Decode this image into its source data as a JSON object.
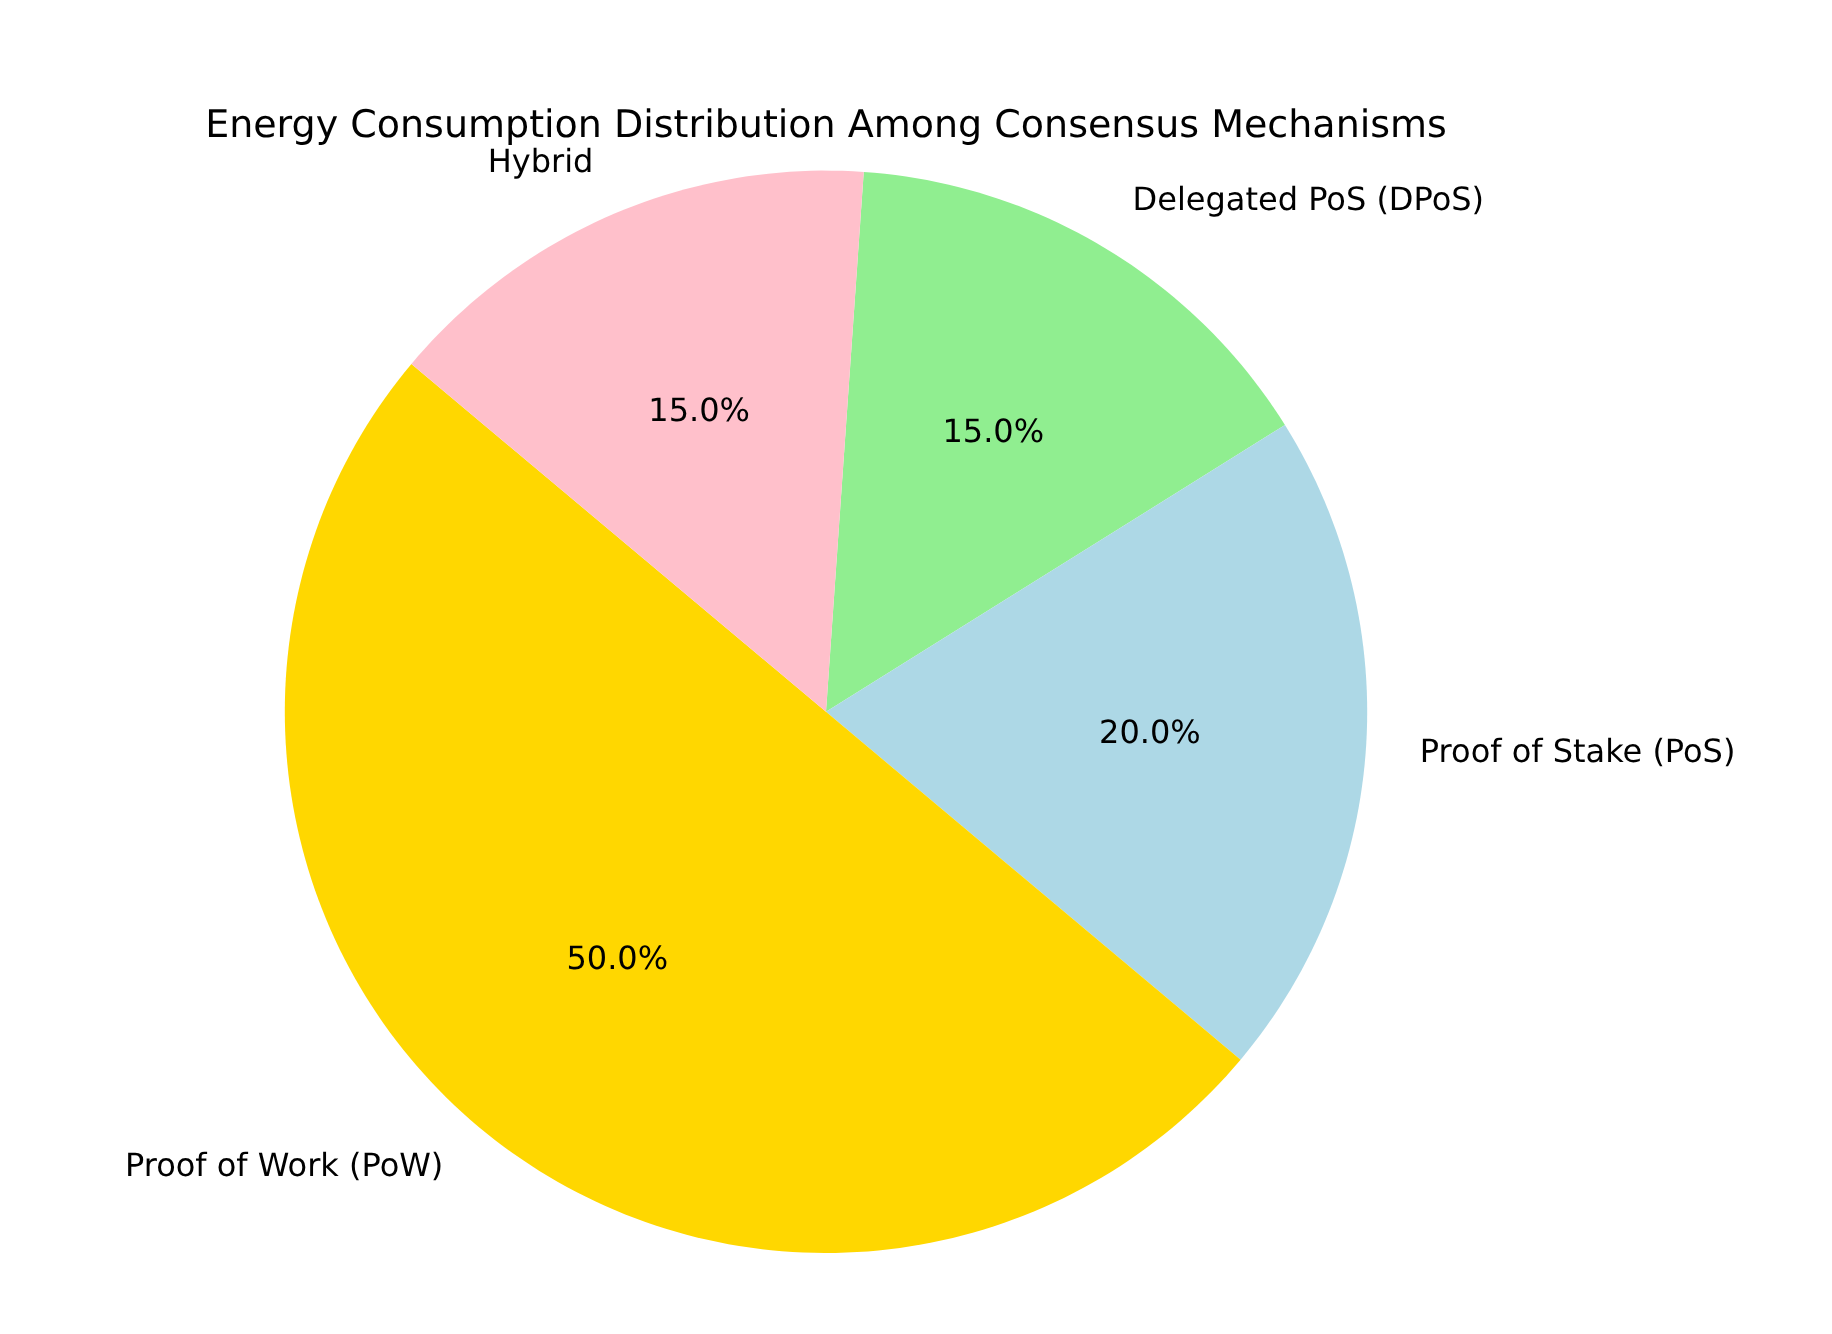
{
  "chart_data": {
    "type": "pie",
    "title": "Energy Consumption Distribution Among Consensus Mechanisms",
    "categories": [
      "Delegated PoS (DPoS)",
      "Proof of Stake (PoS)",
      "Proof of Work (PoW)",
      "Hybrid"
    ],
    "values": [
      15,
      20,
      50,
      15
    ],
    "colors": [
      "#90ee90",
      "#add8e6",
      "#ffd700",
      "#ffc0cb"
    ],
    "value_labels": [
      "15.0%",
      "20.0%",
      "50.0%",
      "15.0%"
    ],
    "legend": false
  }
}
